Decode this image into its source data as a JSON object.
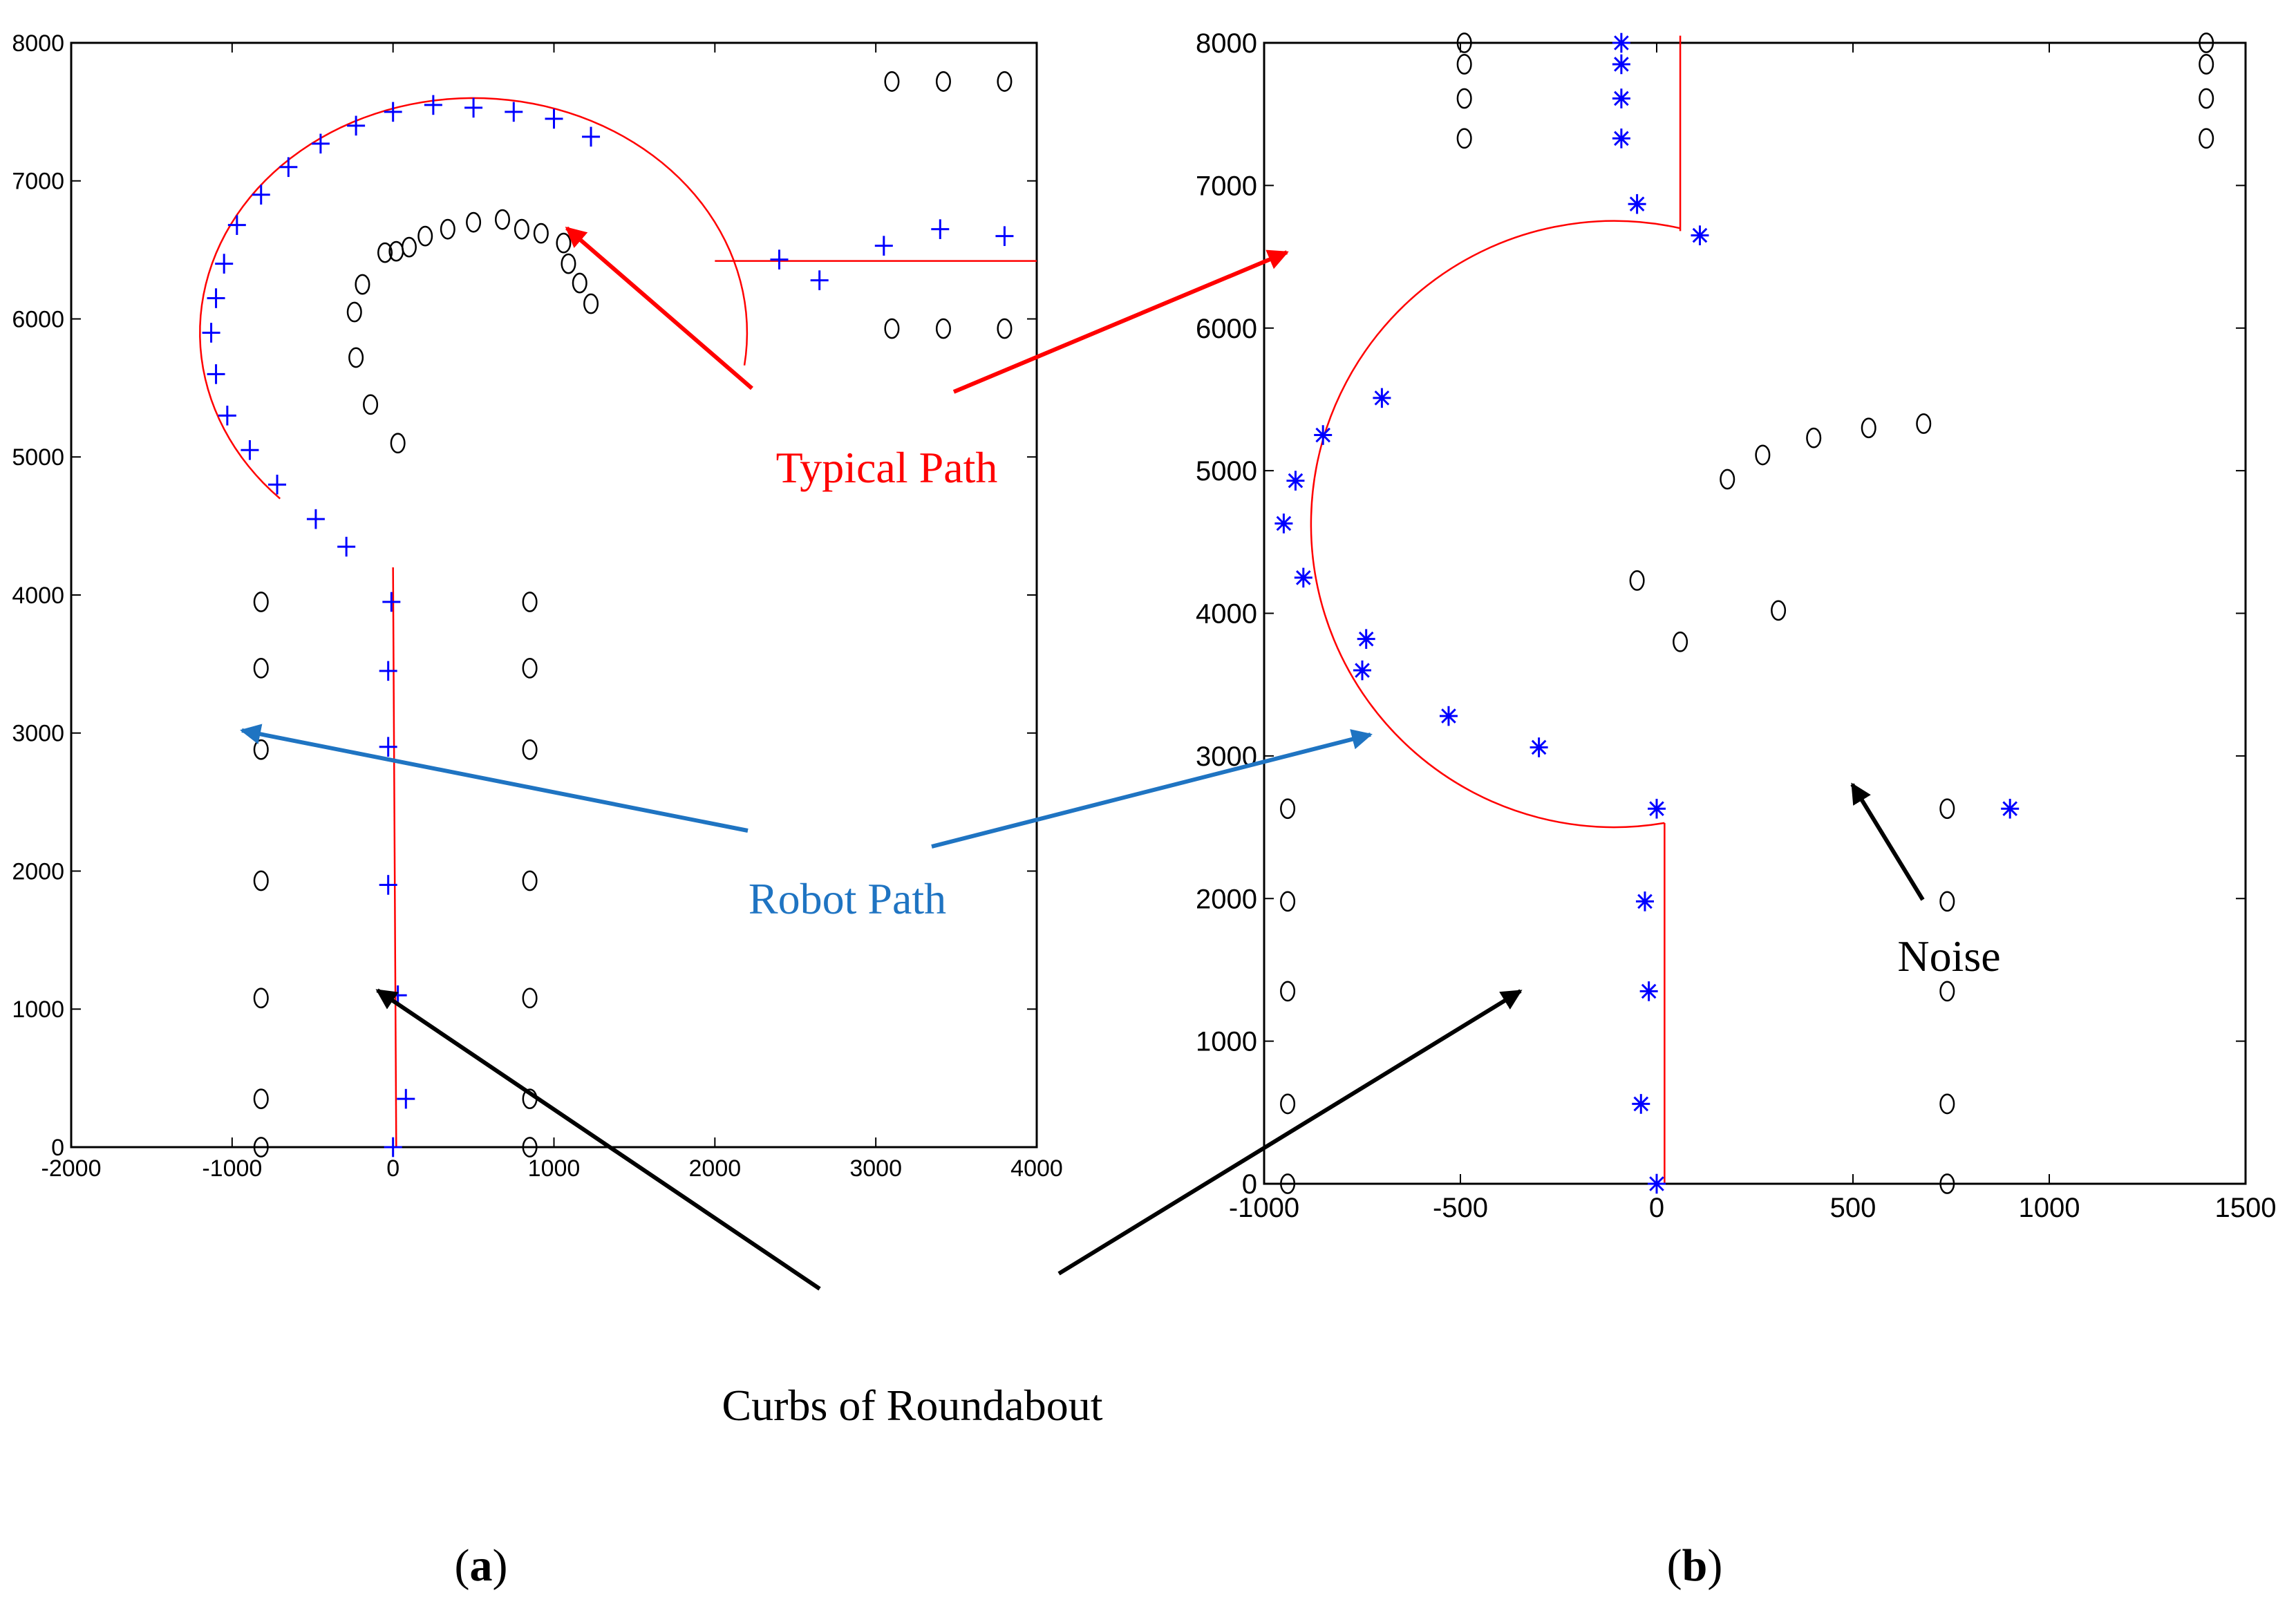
{
  "figure": {
    "annotations": {
      "typical_path": "Typical Path",
      "robot_path": "Robot Path",
      "curbs": "Curbs of Roundabout",
      "noise": "Noise"
    },
    "colors": {
      "typical_path": "#ff0000",
      "robot_path": "#1f74c2",
      "robot_marker": "#0000ff",
      "curb_marker": "#000000",
      "arrow_black": "#000000"
    }
  },
  "chart_data": [
    {
      "type": "scatter",
      "panel_label": "a",
      "title": "",
      "xlabel": "",
      "ylabel": "",
      "xlim": [
        -2000,
        4000
      ],
      "ylim": [
        0,
        8000
      ],
      "xticks": [
        -2000,
        -1000,
        0,
        1000,
        2000,
        3000,
        4000
      ],
      "yticks": [
        0,
        1000,
        2000,
        3000,
        4000,
        5000,
        6000,
        7000,
        8000
      ],
      "series": [
        {
          "name": "Typical Path",
          "kind": "line",
          "segments": [
            {
              "shape": "polyline",
              "points": [
                [
                  20,
                  0
                ],
                [
                  0,
                  4200
                ]
              ]
            },
            {
              "shape": "arc",
              "center": [
                500,
                5900
              ],
              "radius": 1700,
              "start_deg": 225,
              "end_deg": -8
            },
            {
              "shape": "polyline",
              "points": [
                [
                  2000,
                  6420
                ],
                [
                  4000,
                  6420
                ]
              ]
            }
          ]
        },
        {
          "name": "Robot Path",
          "kind": "marker",
          "marker": "plus",
          "points": [
            [
              0,
              0
            ],
            [
              80,
              350
            ],
            [
              30,
              1100
            ],
            [
              -30,
              1900
            ],
            [
              -30,
              2900
            ],
            [
              -30,
              3450
            ],
            [
              -10,
              3950
            ],
            [
              -290,
              4350
            ],
            [
              -480,
              4550
            ],
            [
              -720,
              4800
            ],
            [
              -890,
              5050
            ],
            [
              -1030,
              5300
            ],
            [
              -1100,
              5600
            ],
            [
              -1130,
              5900
            ],
            [
              -1100,
              6150
            ],
            [
              -1050,
              6400
            ],
            [
              -970,
              6680
            ],
            [
              -820,
              6900
            ],
            [
              -650,
              7100
            ],
            [
              -450,
              7270
            ],
            [
              -230,
              7400
            ],
            [
              0,
              7500
            ],
            [
              250,
              7550
            ],
            [
              500,
              7530
            ],
            [
              750,
              7500
            ],
            [
              1000,
              7450
            ],
            [
              1230,
              7320
            ],
            [
              2400,
              6430
            ],
            [
              2650,
              6280
            ],
            [
              3050,
              6530
            ],
            [
              3400,
              6650
            ],
            [
              3800,
              6600
            ]
          ]
        },
        {
          "name": "Curbs of Roundabout",
          "kind": "marker",
          "marker": "circle",
          "points": [
            [
              -820,
              0
            ],
            [
              -820,
              350
            ],
            [
              -820,
              1080
            ],
            [
              -820,
              1930
            ],
            [
              -820,
              2880
            ],
            [
              -820,
              3470
            ],
            [
              -820,
              3950
            ],
            [
              850,
              0
            ],
            [
              850,
              350
            ],
            [
              850,
              1080
            ],
            [
              850,
              1930
            ],
            [
              850,
              2880
            ],
            [
              850,
              3470
            ],
            [
              850,
              3950
            ],
            [
              30,
              5100
            ],
            [
              -140,
              5380
            ],
            [
              -230,
              5720
            ],
            [
              -240,
              6050
            ],
            [
              -190,
              6250
            ],
            [
              -50,
              6480
            ],
            [
              20,
              6490
            ],
            [
              100,
              6520
            ],
            [
              200,
              6600
            ],
            [
              340,
              6650
            ],
            [
              500,
              6700
            ],
            [
              680,
              6720
            ],
            [
              800,
              6650
            ],
            [
              920,
              6620
            ],
            [
              1060,
              6550
            ],
            [
              1090,
              6400
            ],
            [
              1160,
              6260
            ],
            [
              1230,
              6110
            ],
            [
              3100,
              7720
            ],
            [
              3420,
              7720
            ],
            [
              3800,
              7720
            ],
            [
              3100,
              5930
            ],
            [
              3420,
              5930
            ],
            [
              3800,
              5930
            ]
          ]
        }
      ]
    },
    {
      "type": "scatter",
      "panel_label": "b",
      "title": "",
      "xlabel": "",
      "ylabel": "",
      "xlim": [
        -1000,
        1500
      ],
      "ylim": [
        0,
        8000
      ],
      "xticks": [
        -1000,
        -500,
        0,
        500,
        1000,
        1500
      ],
      "yticks": [
        0,
        1000,
        2000,
        3000,
        4000,
        5000,
        6000,
        7000,
        8000
      ],
      "series": [
        {
          "name": "Typical Path",
          "kind": "line",
          "segments": [
            {
              "shape": "polyline",
              "points": [
                [
                  20,
                  0
                ],
                [
                  20,
                  2530
                ]
              ]
            },
            {
              "shape": "arc_through",
              "points": [
                [
                  20,
                  2530
                ],
                [
                  -880,
                  4700
                ],
                [
                  60,
                  6700
                ]
              ]
            },
            {
              "shape": "polyline",
              "points": [
                [
                  60,
                  6680
                ],
                [
                  60,
                  8050
                ]
              ]
            }
          ]
        },
        {
          "name": "Robot Path",
          "kind": "marker",
          "marker": "star",
          "points": [
            [
              0,
              0
            ],
            [
              -40,
              560
            ],
            [
              -20,
              1350
            ],
            [
              -30,
              1980
            ],
            [
              0,
              2630
            ],
            [
              -300,
              3060
            ],
            [
              -530,
              3280
            ],
            [
              -750,
              3600
            ],
            [
              -740,
              3820
            ],
            [
              -900,
              4250
            ],
            [
              -950,
              4630
            ],
            [
              -920,
              4930
            ],
            [
              -850,
              5250
            ],
            [
              -700,
              5510
            ],
            [
              -50,
              6870
            ],
            [
              110,
              6650
            ],
            [
              -90,
              7330
            ],
            [
              -90,
              7610
            ],
            [
              -90,
              7850
            ],
            [
              -90,
              8000
            ],
            [
              900,
              2630
            ]
          ]
        },
        {
          "name": "Curbs of Roundabout",
          "kind": "marker",
          "marker": "circle",
          "points": [
            [
              -940,
              0
            ],
            [
              -940,
              560
            ],
            [
              -940,
              1350
            ],
            [
              -940,
              1980
            ],
            [
              -940,
              2630
            ],
            [
              740,
              0
            ],
            [
              740,
              560
            ],
            [
              740,
              1350
            ],
            [
              740,
              1980
            ],
            [
              740,
              2630
            ],
            [
              -490,
              7330
            ],
            [
              -490,
              7610
            ],
            [
              -490,
              7850
            ],
            [
              -490,
              8000
            ],
            [
              1400,
              7330
            ],
            [
              1400,
              7610
            ],
            [
              1400,
              7850
            ],
            [
              1400,
              8000
            ],
            [
              -50,
              4230
            ],
            [
              60,
              3800
            ],
            [
              310,
              4020
            ],
            [
              180,
              4940
            ],
            [
              270,
              5110
            ],
            [
              400,
              5230
            ],
            [
              540,
              5300
            ],
            [
              680,
              5330
            ]
          ]
        }
      ]
    }
  ]
}
